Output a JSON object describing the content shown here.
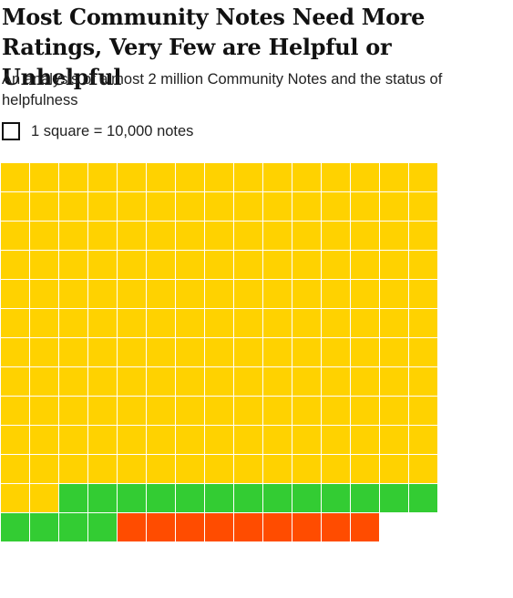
{
  "title": "Most Community Notes Need More Ratings, Very Few are Helpful or Unhelpful",
  "subtitle": "An analysis of almost 2 million Community Notes and the status of helpfulness",
  "legend": {
    "label": "1 square = 10,000 notes"
  },
  "chart_data": {
    "type": "waffle",
    "unit_value": 10000,
    "columns": 15,
    "fill_order": "row-major, left-to-right, top-to-bottom",
    "categories": [
      {
        "color": "#FFD200",
        "squares": 167
      },
      {
        "color": "#33CC33",
        "squares": 17
      },
      {
        "color": "#FF4C00",
        "squares": 9
      }
    ]
  }
}
